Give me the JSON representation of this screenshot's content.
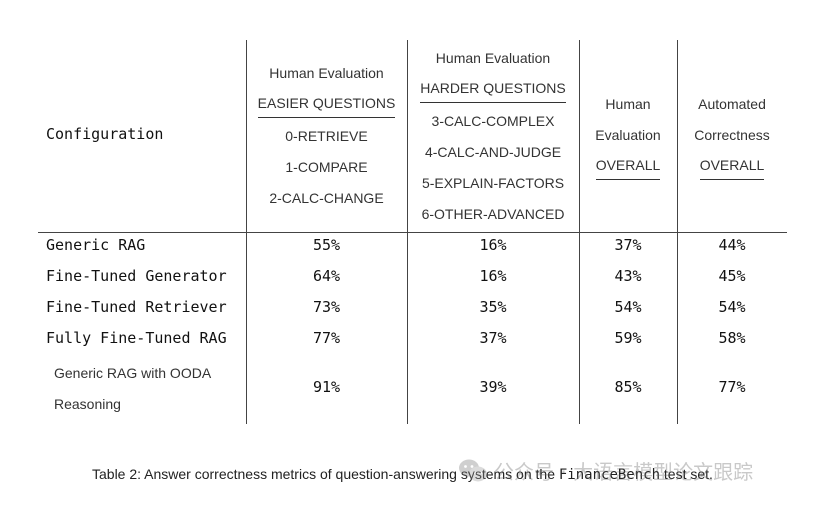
{
  "table": {
    "config_header": "Configuration",
    "col_easier": {
      "lines": [
        "Human Evaluation",
        "EASIER QUESTIONS",
        "0-RETRIEVE",
        "1-COMPARE",
        "2-CALC-CHANGE"
      ]
    },
    "col_harder": {
      "lines": [
        "Human Evaluation",
        "HARDER QUESTIONS",
        "3-CALC-COMPLEX",
        "4-CALC-AND-JUDGE",
        "5-EXPLAIN-FACTORS",
        "6-OTHER-ADVANCED"
      ]
    },
    "col_overall": {
      "lines": [
        "Human",
        "Evaluation",
        "OVERALL"
      ]
    },
    "col_auto": {
      "lines": [
        "Automated",
        "Correctness",
        "OVERALL"
      ]
    },
    "rows": [
      {
        "name": "Generic RAG",
        "easier": "55%",
        "harder": "16%",
        "overall": "37%",
        "auto": "44%"
      },
      {
        "name": "Fine-Tuned Generator",
        "easier": "64%",
        "harder": "16%",
        "overall": "43%",
        "auto": "45%"
      },
      {
        "name": "Fine-Tuned Retriever",
        "easier": "73%",
        "harder": "35%",
        "overall": "54%",
        "auto": "54%"
      },
      {
        "name": "Fully Fine-Tuned RAG",
        "easier": "77%",
        "harder": "37%",
        "overall": "59%",
        "auto": "58%"
      },
      {
        "name_line1": "Generic RAG with OODA",
        "name_line2": "Reasoning",
        "easier": "91%",
        "harder": "39%",
        "overall": "85%",
        "auto": "77%"
      }
    ]
  },
  "caption": {
    "before": "Table 2: Answer correctness metrics of question-answering systems on the ",
    "mono": "FinanceBench",
    "after": " test set."
  },
  "watermark": {
    "text": "公众号 · 大语言模型论文跟踪",
    "icon": "wechat-icon"
  }
}
